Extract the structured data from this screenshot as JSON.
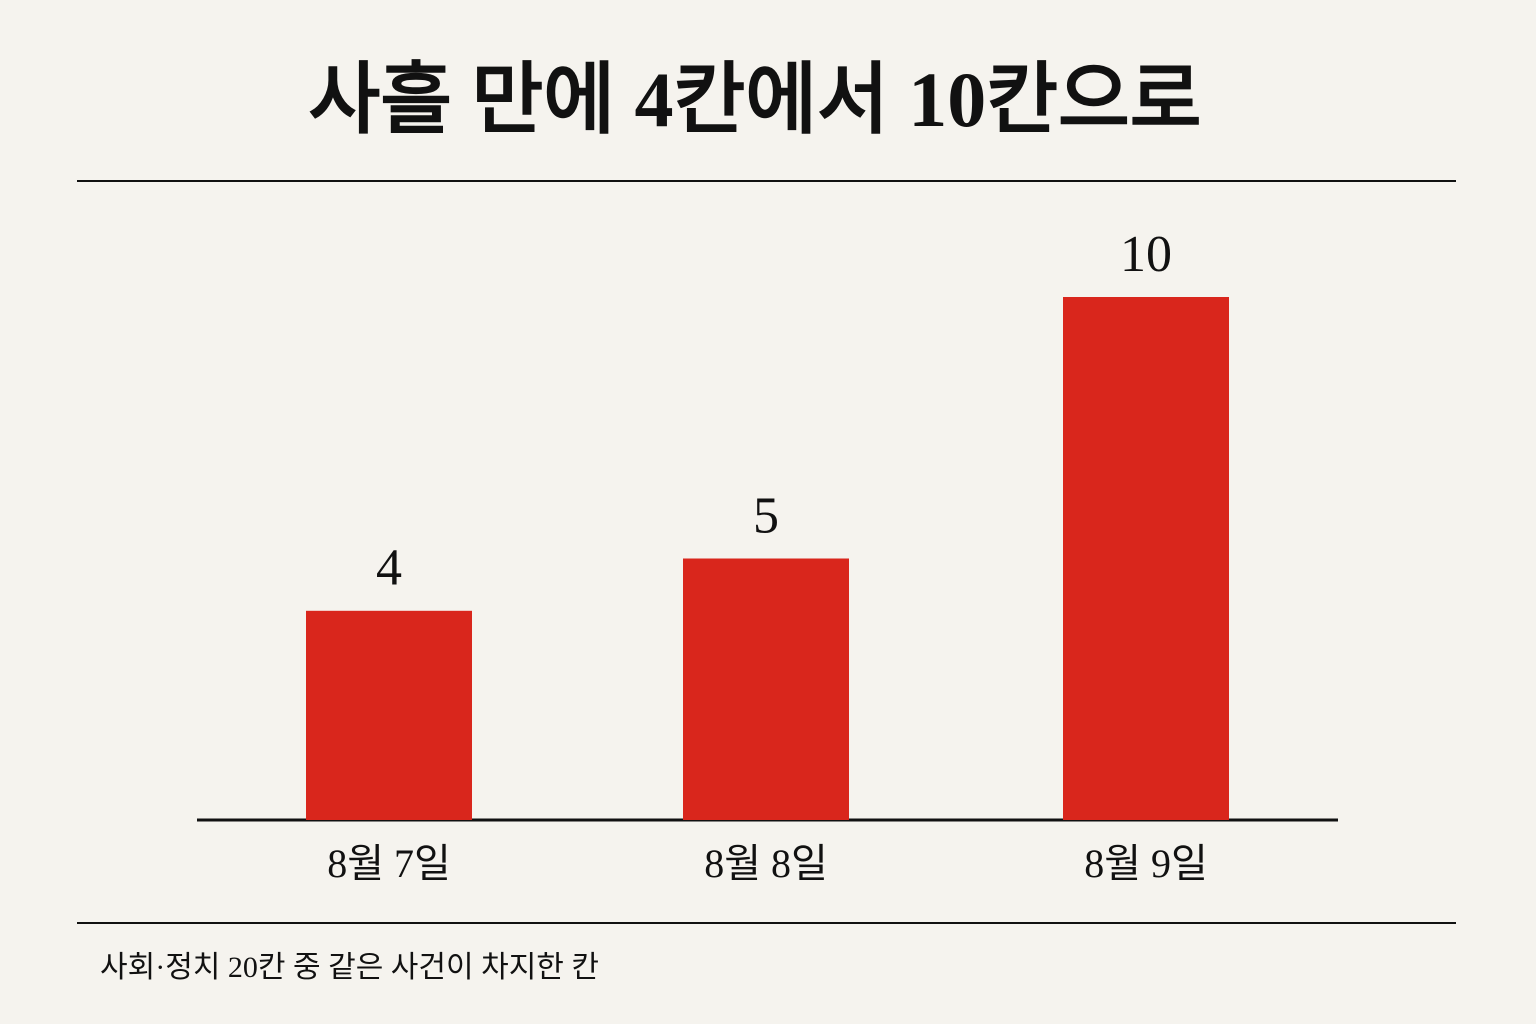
{
  "chart_data": {
    "type": "bar",
    "title": "사흘 만에 4칸에서 10칸으로",
    "categories": [
      "8월 7일",
      "8월 8일",
      "8월 9일"
    ],
    "values": [
      4,
      5,
      10
    ],
    "color": "#d9261c",
    "note": "사회·정치 20칸 중 같은 사건이 차지한 칸"
  }
}
